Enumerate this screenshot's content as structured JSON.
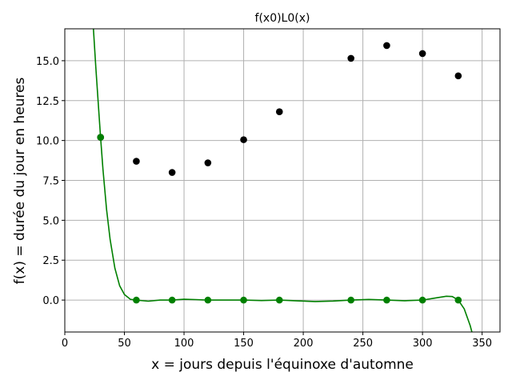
{
  "chart_data": {
    "type": "scatter",
    "title": "f(x0)L0(x)",
    "xlabel": "x = jours depuis l'équinoxe d'automne",
    "ylabel": "f(x) = durée du jour en heures",
    "xlim": [
      0,
      365
    ],
    "ylim": [
      -2.0,
      17.0
    ],
    "xticks": [
      0,
      50,
      100,
      150,
      200,
      250,
      300,
      350
    ],
    "yticks": [
      0.0,
      2.5,
      5.0,
      7.5,
      10.0,
      12.5,
      15.0
    ],
    "xtick_labels": [
      "0",
      "50",
      "100",
      "150",
      "200",
      "250",
      "300",
      "350"
    ],
    "ytick_labels": [
      "0.0",
      "2.5",
      "5.0",
      "7.5",
      "10.0",
      "12.5",
      "15.0"
    ],
    "grid": true,
    "colors": {
      "data": "#000000",
      "lagrange": "#008000",
      "grid": "#b0b0b0"
    },
    "series": [
      {
        "kind": "scatter",
        "color": "#000000",
        "x": [
          30,
          60,
          90,
          120,
          150,
          180,
          240,
          270,
          300,
          330
        ],
        "y": [
          10.2,
          8.7,
          8.0,
          8.6,
          10.05,
          11.8,
          15.15,
          15.95,
          15.45,
          14.05
        ]
      },
      {
        "kind": "scatter",
        "color": "#008000",
        "x": [
          30,
          60,
          90,
          120,
          150,
          180,
          240,
          270,
          300,
          330
        ],
        "y": [
          10.2,
          0,
          0,
          0,
          0,
          0,
          0,
          0,
          0,
          0
        ]
      },
      {
        "kind": "line",
        "color": "#008000",
        "x": [
          24,
          26,
          28,
          30,
          32,
          35,
          38,
          42,
          46,
          50,
          55,
          60,
          70,
          80,
          90,
          100,
          110,
          120,
          135,
          150,
          165,
          180,
          195,
          210,
          225,
          240,
          255,
          270,
          285,
          300,
          310,
          320,
          325,
          330,
          335,
          340,
          345
        ],
        "y": [
          17.0,
          14.6,
          12.4,
          10.2,
          8.2,
          5.7,
          3.8,
          2.0,
          0.9,
          0.35,
          0.05,
          0.0,
          -0.07,
          0.0,
          0.0,
          0.05,
          0.03,
          0.0,
          0.0,
          0.0,
          -0.03,
          0.0,
          -0.05,
          -0.09,
          -0.06,
          0.0,
          0.04,
          0.0,
          -0.04,
          0.0,
          0.12,
          0.24,
          0.22,
          0.0,
          -0.55,
          -1.6,
          -3.0
        ]
      }
    ]
  }
}
